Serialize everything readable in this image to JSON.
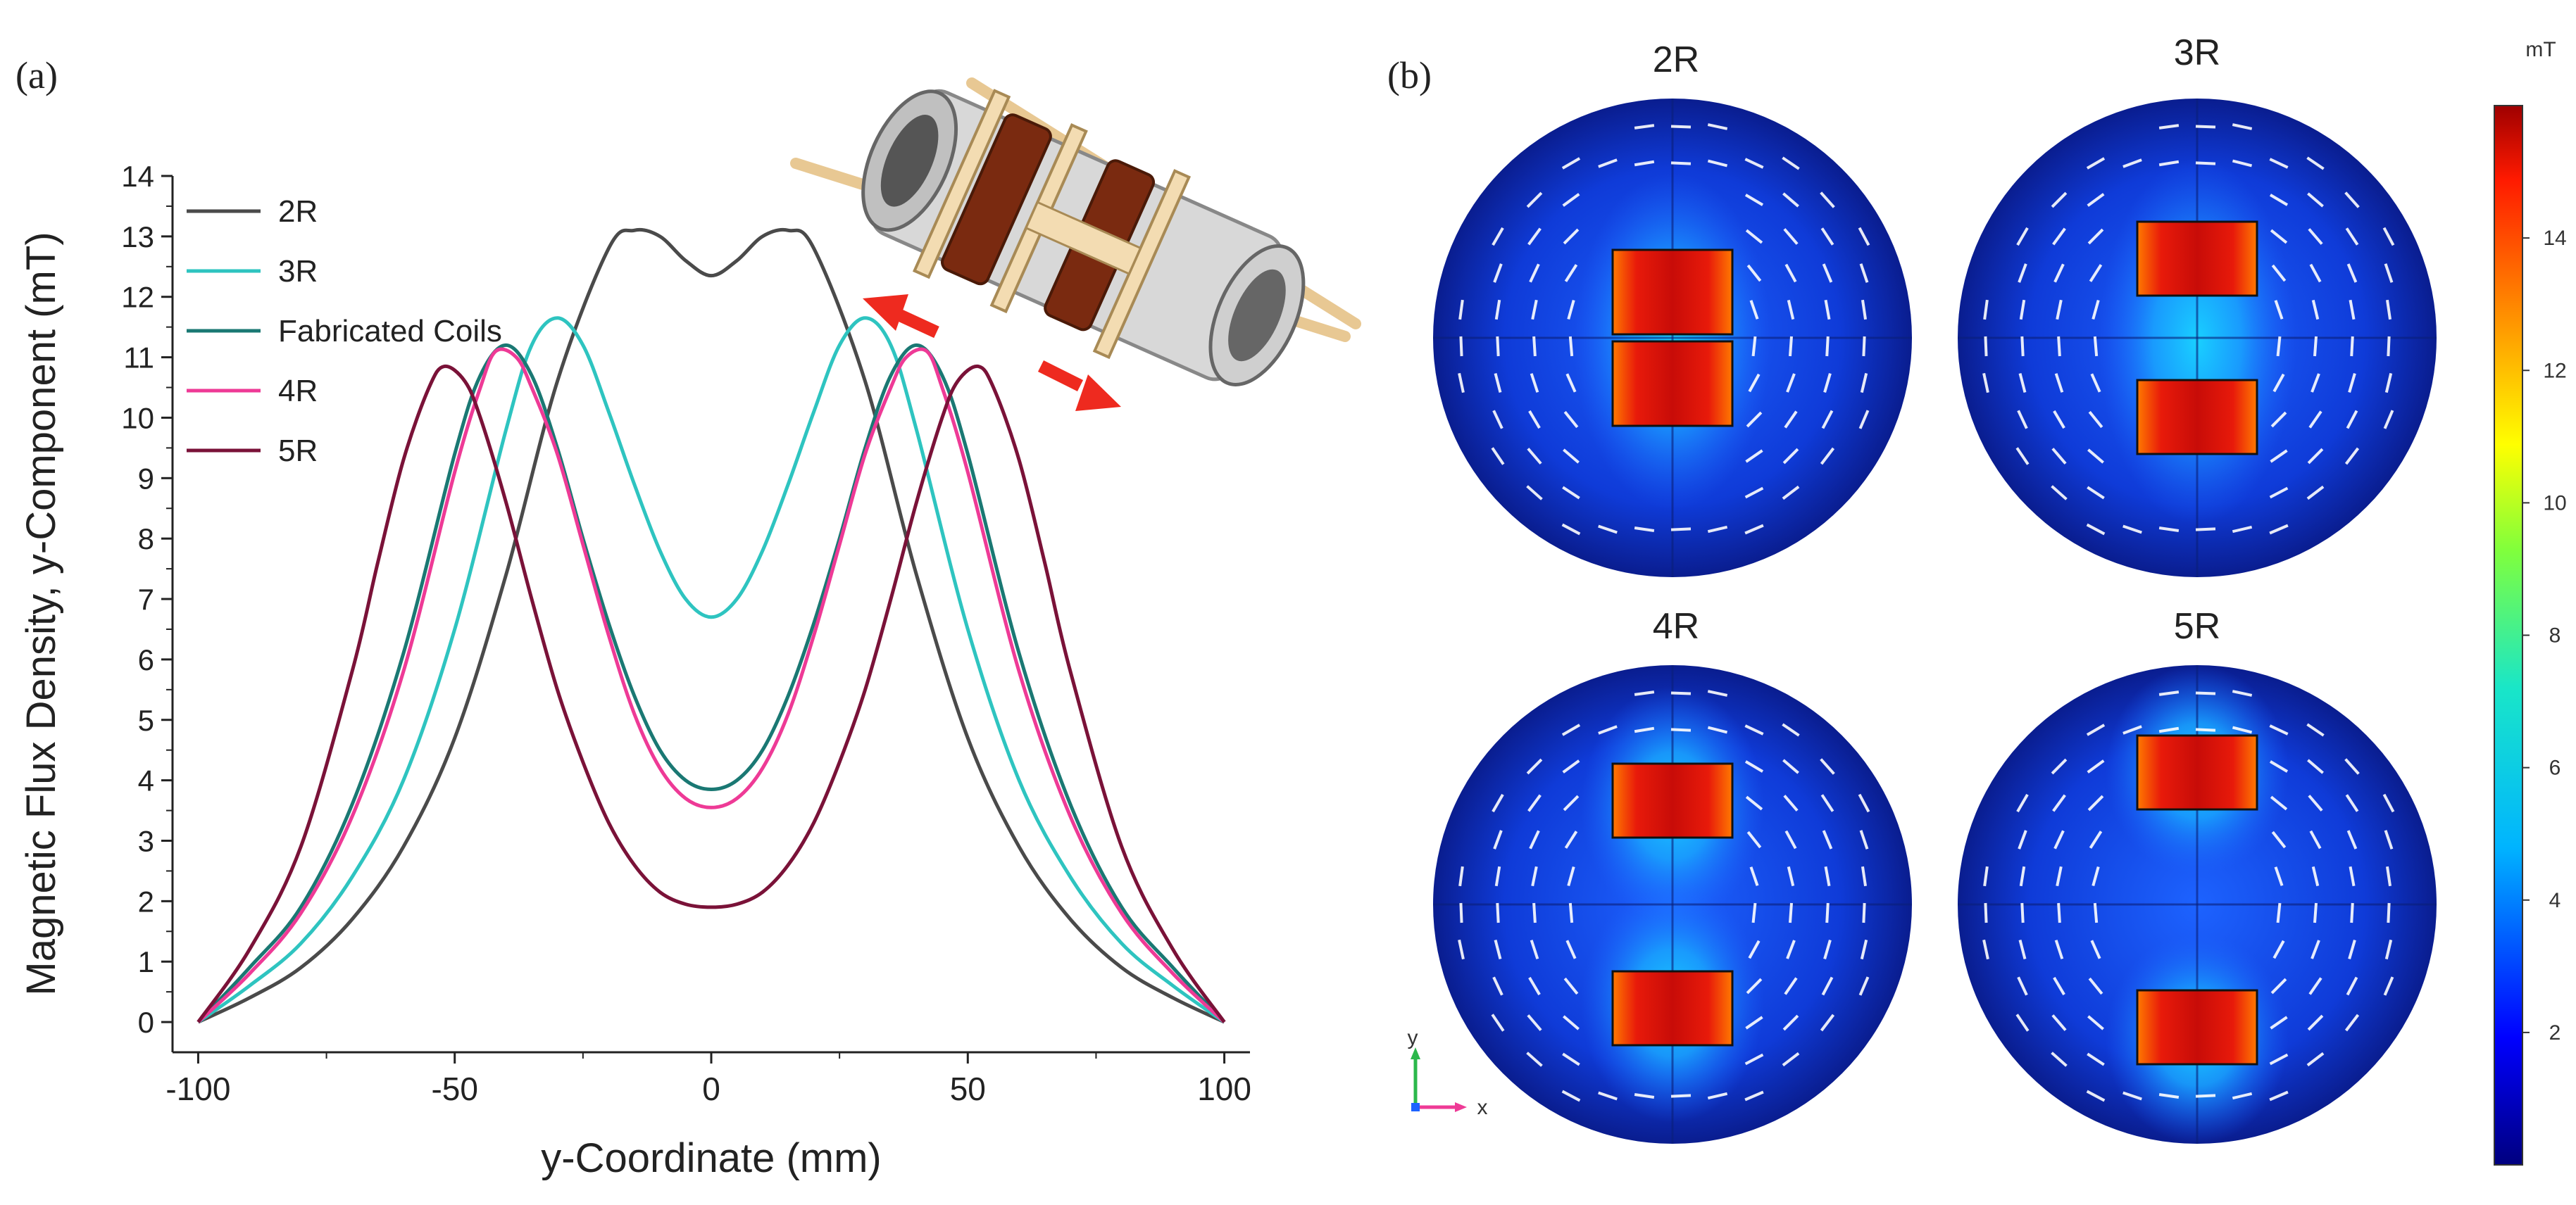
{
  "chart_data": [
    {
      "panel_label": "(a)",
      "type": "line",
      "xlabel": "y-Coordinate (mm)",
      "ylabel": "Magnetic Flux Density, y-Component (mT)",
      "xlim": [
        -105,
        105
      ],
      "ylim": [
        -0.5,
        14
      ],
      "xticks": [
        -100,
        -50,
        0,
        50,
        100
      ],
      "xtick_labels": [
        "-100",
        "-50",
        "0",
        "50",
        "100"
      ],
      "yticks": [
        0,
        1,
        2,
        3,
        4,
        5,
        6,
        7,
        8,
        9,
        10,
        11,
        12,
        13,
        14
      ],
      "ytick_labels": [
        "0",
        "1",
        "2",
        "3",
        "4",
        "5",
        "6",
        "7",
        "8",
        "9",
        "10",
        "11",
        "12",
        "13",
        "14"
      ],
      "legend_position": "top-left",
      "series": [
        {
          "name": "2R",
          "color": "#4a4a4a",
          "x": [
            -100,
            -90,
            -80,
            -70,
            -60,
            -50,
            -40,
            -30,
            -20,
            -15,
            -10,
            -5,
            0,
            5,
            10,
            15,
            20,
            30,
            40,
            50,
            60,
            70,
            80,
            90,
            100
          ],
          "y": [
            0,
            0.4,
            0.9,
            1.7,
            2.9,
            4.7,
            7.4,
            10.6,
            12.8,
            13.1,
            13.0,
            12.6,
            12.35,
            12.6,
            13.0,
            13.1,
            12.8,
            10.6,
            7.4,
            4.7,
            2.9,
            1.7,
            0.9,
            0.4,
            0
          ]
        },
        {
          "name": "3R",
          "color": "#2ec4c0",
          "x": [
            -100,
            -90,
            -80,
            -70,
            -60,
            -50,
            -40,
            -35,
            -30,
            -25,
            -20,
            -15,
            -10,
            -5,
            0,
            5,
            10,
            15,
            20,
            25,
            30,
            35,
            40,
            50,
            60,
            70,
            80,
            90,
            100
          ],
          "y": [
            0,
            0.6,
            1.3,
            2.4,
            4.0,
            6.5,
            9.8,
            11.2,
            11.65,
            11.2,
            10.1,
            8.9,
            7.8,
            7.0,
            6.7,
            7.0,
            7.8,
            8.9,
            10.1,
            11.2,
            11.65,
            11.2,
            9.8,
            6.5,
            4.0,
            2.4,
            1.3,
            0.6,
            0
          ]
        },
        {
          "name": "Fabricated Coils",
          "color": "#1a7873",
          "x": [
            -100,
            -90,
            -80,
            -70,
            -60,
            -50,
            -45,
            -40,
            -35,
            -30,
            -25,
            -20,
            -15,
            -10,
            -5,
            0,
            5,
            10,
            15,
            20,
            25,
            30,
            35,
            40,
            45,
            50,
            60,
            70,
            80,
            90,
            100
          ],
          "y": [
            0,
            0.9,
            1.9,
            3.6,
            6.1,
            9.4,
            10.7,
            11.2,
            10.7,
            9.5,
            8.0,
            6.6,
            5.4,
            4.5,
            4.0,
            3.85,
            4.0,
            4.5,
            5.4,
            6.6,
            8.0,
            9.5,
            10.7,
            11.2,
            10.7,
            9.4,
            6.1,
            3.6,
            1.9,
            0.9,
            0
          ]
        },
        {
          "name": "4R",
          "color": "#ee3a96",
          "x": [
            -100,
            -90,
            -80,
            -70,
            -60,
            -50,
            -45,
            -42,
            -38,
            -35,
            -30,
            -25,
            -20,
            -15,
            -10,
            -5,
            0,
            5,
            10,
            15,
            20,
            25,
            30,
            35,
            38,
            42,
            45,
            50,
            60,
            70,
            80,
            90,
            100
          ],
          "y": [
            0,
            0.8,
            1.8,
            3.4,
            5.8,
            9.1,
            10.5,
            11.1,
            11.0,
            10.5,
            9.4,
            7.9,
            6.4,
            5.1,
            4.2,
            3.7,
            3.55,
            3.7,
            4.2,
            5.1,
            6.4,
            7.9,
            9.4,
            10.5,
            11.0,
            11.1,
            10.5,
            9.1,
            5.8,
            3.4,
            1.8,
            0.8,
            0
          ]
        },
        {
          "name": "5R",
          "color": "#7a1238",
          "x": [
            -100,
            -90,
            -80,
            -70,
            -65,
            -60,
            -55,
            -52,
            -48,
            -45,
            -40,
            -35,
            -30,
            -25,
            -20,
            -15,
            -10,
            -5,
            0,
            5,
            10,
            15,
            20,
            25,
            30,
            35,
            40,
            45,
            48,
            52,
            55,
            60,
            65,
            70,
            80,
            90,
            100
          ],
          "y": [
            0,
            1.2,
            2.9,
            5.8,
            7.6,
            9.3,
            10.5,
            10.85,
            10.6,
            10.0,
            8.6,
            7.0,
            5.5,
            4.3,
            3.3,
            2.6,
            2.15,
            1.95,
            1.9,
            1.95,
            2.15,
            2.6,
            3.3,
            4.3,
            5.5,
            7.0,
            8.6,
            10.0,
            10.6,
            10.85,
            10.5,
            9.3,
            7.6,
            5.8,
            2.9,
            1.2,
            0
          ]
        }
      ]
    },
    {
      "panel_label": "(b)",
      "type": "heatmap",
      "panels": [
        "2R",
        "3R",
        "4R",
        "5R"
      ],
      "colorbar_unit": "mT",
      "colorbar_ticks": [
        "14",
        "12",
        "10",
        "8",
        "6",
        "4",
        "2"
      ],
      "colorbar_range": [
        0,
        16
      ],
      "axis_labels": {
        "x": "x",
        "y": "y"
      }
    }
  ]
}
